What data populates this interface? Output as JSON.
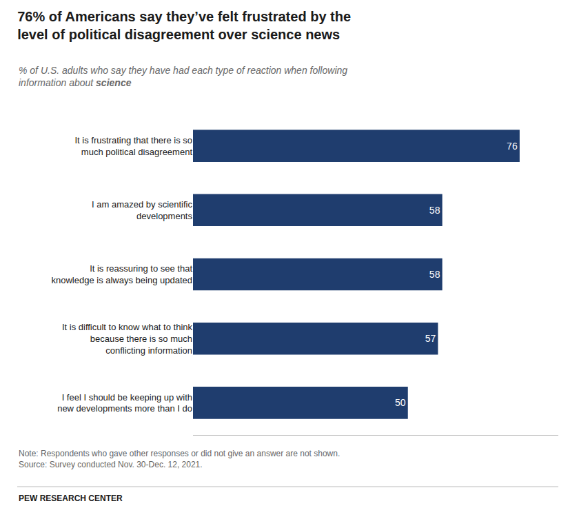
{
  "chart_data": {
    "type": "bar",
    "orientation": "horizontal",
    "title": "76% of Americans say they’ve felt frustrated by the\nlevel of political disagreement over science news",
    "subtitle": "% of U.S. adults who say they have had each type of reaction when following\ninformation about science",
    "categories": [
      "It is frustrating that there is so\nmuch political disagreement",
      "I am amazed by scientific\ndevelopments",
      "It is reassuring to see that\nknowledge is always being updated",
      "It is difficult to know what to think\nbecause there is so much\nconflicting information",
      "I feel I should be keeping up with\nnew developments more than I do"
    ],
    "values": [
      76,
      58,
      58,
      57,
      50
    ],
    "color": "#1f3d6e",
    "xlim": [
      0,
      85
    ],
    "data_labels": true,
    "tick_labels": "y",
    "grid": false,
    "annotations": [
      "Note: Respondents who gave other responses or did not give an answer are not shown.\nSource: Survey conducted Nov. 30-Dec. 12, 2021.",
      "PEW RESEARCH CENTER"
    ]
  }
}
